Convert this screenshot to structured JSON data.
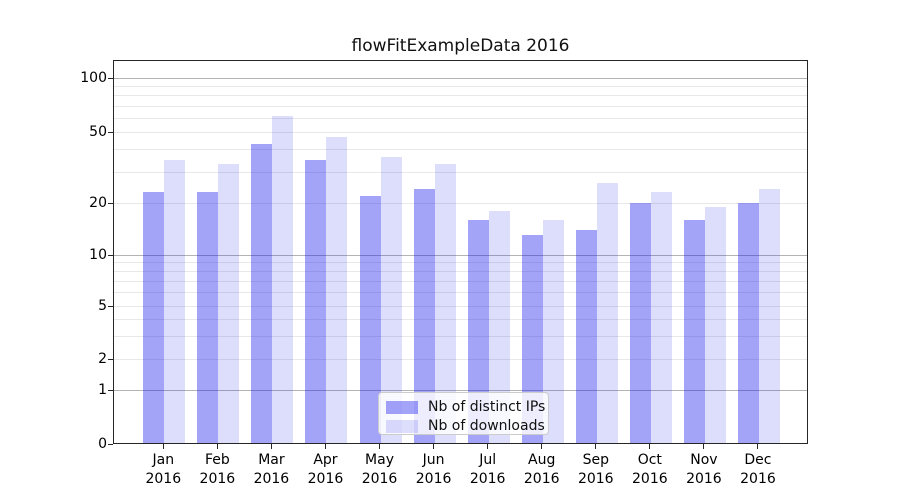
{
  "chart": {
    "title": "flowFitExampleData 2016",
    "legend": {
      "ips_label": "Nb of distinct IPs",
      "downloads_label": "Nb of downloads"
    }
  },
  "chart_data": {
    "type": "bar",
    "title": "flowFitExampleData 2016",
    "categories": [
      "Jan",
      "Feb",
      "Mar",
      "Apr",
      "May",
      "Jun",
      "Jul",
      "Aug",
      "Sep",
      "Oct",
      "Nov",
      "Dec"
    ],
    "category_year": "2016",
    "series": [
      {
        "name": "Nb of distinct IPs",
        "color_hex": "#a3a3f7",
        "values": [
          23,
          23,
          43,
          35,
          22,
          24,
          16,
          13,
          14,
          20,
          16,
          20
        ]
      },
      {
        "name": "Nb of downloads",
        "color_hex": "#dcdcfc",
        "values": [
          35,
          33,
          61,
          47,
          36,
          33,
          18,
          16,
          26,
          23,
          19,
          24
        ]
      }
    ],
    "xlabel": "",
    "ylabel": "",
    "yscale": "log-like (linear 0-1, logarithmic above 1)",
    "ylim": [
      0,
      127
    ],
    "ytick_labels": [
      0,
      1,
      2,
      5,
      10,
      20,
      50,
      100
    ],
    "gridlines_major": [
      1,
      10,
      100
    ],
    "gridlines_minor": [
      2,
      3,
      4,
      5,
      6,
      7,
      8,
      9,
      20,
      30,
      40,
      50,
      60,
      70,
      80,
      90
    ],
    "grid": true,
    "legend_position": "lower center",
    "background_color": "#ffffff"
  }
}
